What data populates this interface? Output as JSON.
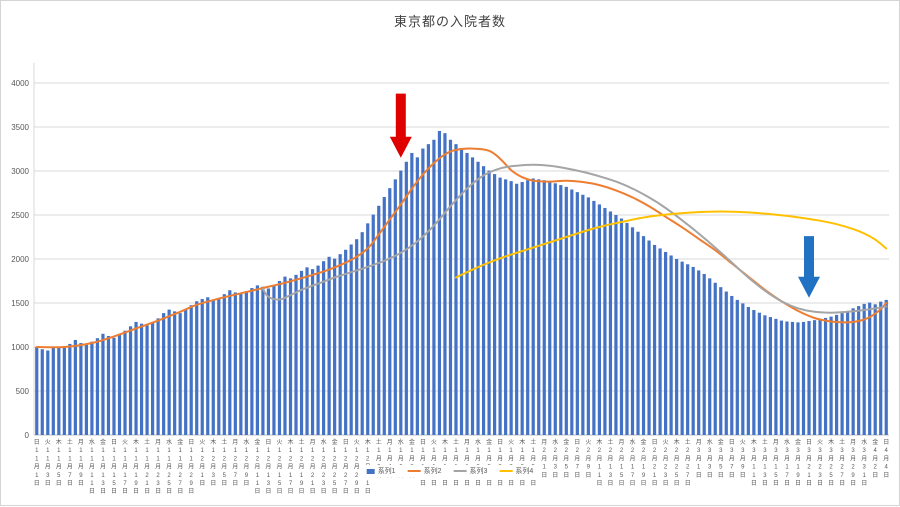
{
  "chart_data": {
    "type": "bar",
    "title": "東京都の入院者数",
    "xlabel": "",
    "ylabel": "",
    "ylim": [
      0,
      4000
    ],
    "y_ticks": [
      0,
      500,
      1000,
      1500,
      2000,
      2500,
      3000,
      3500,
      4000
    ],
    "grid": true,
    "legend_position": "bottom",
    "n_days": 155,
    "x_tick_every_days": 2,
    "x_tick_labels": [
      "日11月1日",
      "火11月3日",
      "木11月5日",
      "土11月7日",
      "月11月9日",
      "水11月11日",
      "金11月13日",
      "日11月15日",
      "火11月17日",
      "木11月19日",
      "土11月21日",
      "月11月23日",
      "水11月25日",
      "金11月27日",
      "日11月29日",
      "火12月1日",
      "木12月3日",
      "土12月5日",
      "月12月7日",
      "水12月9日",
      "金12月11日",
      "日12月13日",
      "火12月15日",
      "木12月17日",
      "土12月19日",
      "月12月21日",
      "水12月23日",
      "金12月25日",
      "日12月27日",
      "火12月29日",
      "木12月31日",
      "土1月2日",
      "月1月4日",
      "水1月6日",
      "金1月8日",
      "日1月10日",
      "火1月12日",
      "木1月14日",
      "土1月16日",
      "月1月18日",
      "水1月20日",
      "金1月22日",
      "日1月24日",
      "火1月26日",
      "木1月28日",
      "土1月30日",
      "月2月1日",
      "水2月3日",
      "金2月5日",
      "日2月7日",
      "火2月9日",
      "木2月11日",
      "土2月13日",
      "月2月15日",
      "水2月17日",
      "金2月19日",
      "日2月21日",
      "火2月23日",
      "木2月25日",
      "土2月27日",
      "月3月1日",
      "水3月3日",
      "金3月5日",
      "日3月7日",
      "火3月9日",
      "木3月11日",
      "土3月13日",
      "月3月15日",
      "水3月17日",
      "金3月19日",
      "日3月21日",
      "火3月23日",
      "木3月25日",
      "土3月27日",
      "月3月29日",
      "水3月31日",
      "金4月2日",
      "日4月4日"
    ],
    "series": [
      {
        "name": "系列1",
        "type": "bar",
        "color": "#4472C4",
        "values": [
          1000,
          975,
          960,
          1005,
          990,
          1010,
          1035,
          1080,
          1045,
          1025,
          1060,
          1100,
          1150,
          1125,
          1105,
          1145,
          1185,
          1235,
          1285,
          1265,
          1245,
          1275,
          1325,
          1385,
          1425,
          1405,
          1385,
          1425,
          1475,
          1520,
          1545,
          1565,
          1535,
          1555,
          1600,
          1645,
          1620,
          1605,
          1635,
          1670,
          1700,
          1685,
          1665,
          1705,
          1750,
          1800,
          1780,
          1820,
          1865,
          1905,
          1885,
          1925,
          1975,
          2025,
          2005,
          2055,
          2105,
          2165,
          2225,
          2305,
          2405,
          2505,
          2605,
          2705,
          2805,
          2905,
          3005,
          3105,
          3205,
          3155,
          3255,
          3305,
          3355,
          3455,
          3430,
          3355,
          3305,
          3255,
          3205,
          3155,
          3105,
          3055,
          3005,
          2965,
          2925,
          2905,
          2885,
          2855,
          2875,
          2895,
          2915,
          2905,
          2895,
          2880,
          2860,
          2840,
          2820,
          2790,
          2760,
          2730,
          2700,
          2660,
          2620,
          2580,
          2540,
          2500,
          2460,
          2410,
          2360,
          2310,
          2260,
          2210,
          2160,
          2120,
          2080,
          2040,
          2000,
          1970,
          1940,
          1910,
          1870,
          1830,
          1780,
          1730,
          1680,
          1630,
          1580,
          1535,
          1495,
          1455,
          1420,
          1390,
          1360,
          1340,
          1320,
          1300,
          1290,
          1285,
          1280,
          1285,
          1295,
          1305,
          1315,
          1330,
          1345,
          1365,
          1385,
          1410,
          1440,
          1465,
          1490,
          1505,
          1485,
          1515,
          1535
        ]
      },
      {
        "name": "系列2",
        "type": "line",
        "color": "#ED7D31",
        "points": [
          [
            0,
            1000
          ],
          [
            5,
            1000
          ],
          [
            10,
            1045
          ],
          [
            14,
            1120
          ],
          [
            18,
            1210
          ],
          [
            22,
            1300
          ],
          [
            26,
            1400
          ],
          [
            29,
            1480
          ],
          [
            33,
            1550
          ],
          [
            37,
            1610
          ],
          [
            41,
            1670
          ],
          [
            45,
            1730
          ],
          [
            49,
            1800
          ],
          [
            53,
            1880
          ],
          [
            57,
            1990
          ],
          [
            60,
            2120
          ],
          [
            62,
            2280
          ],
          [
            64,
            2450
          ],
          [
            66,
            2620
          ],
          [
            68,
            2800
          ],
          [
            70,
            2960
          ],
          [
            72,
            3090
          ],
          [
            74,
            3190
          ],
          [
            76,
            3240
          ],
          [
            79,
            3255
          ],
          [
            82,
            3230
          ],
          [
            84,
            3140
          ],
          [
            86,
            3010
          ],
          [
            88,
            2930
          ],
          [
            90,
            2890
          ],
          [
            93,
            2880
          ],
          [
            96,
            2890
          ],
          [
            99,
            2875
          ],
          [
            102,
            2840
          ],
          [
            105,
            2780
          ],
          [
            108,
            2700
          ],
          [
            111,
            2600
          ],
          [
            114,
            2480
          ],
          [
            117,
            2360
          ],
          [
            120,
            2230
          ],
          [
            123,
            2100
          ],
          [
            126,
            1950
          ],
          [
            129,
            1800
          ],
          [
            132,
            1650
          ],
          [
            135,
            1520
          ],
          [
            138,
            1410
          ],
          [
            141,
            1330
          ],
          [
            144,
            1290
          ],
          [
            147,
            1280
          ],
          [
            149,
            1295
          ],
          [
            151,
            1340
          ],
          [
            153,
            1430
          ],
          [
            154,
            1500
          ]
        ]
      },
      {
        "name": "系列3",
        "type": "line",
        "color": "#A5A5A5",
        "points": [
          [
            41,
            1660
          ],
          [
            42,
            1570
          ],
          [
            44,
            1540
          ],
          [
            46,
            1590
          ],
          [
            48,
            1650
          ],
          [
            51,
            1720
          ],
          [
            54,
            1790
          ],
          [
            57,
            1850
          ],
          [
            60,
            1910
          ],
          [
            63,
            1980
          ],
          [
            66,
            2070
          ],
          [
            69,
            2200
          ],
          [
            72,
            2380
          ],
          [
            75,
            2600
          ],
          [
            78,
            2800
          ],
          [
            81,
            2950
          ],
          [
            84,
            3030
          ],
          [
            87,
            3060
          ],
          [
            90,
            3070
          ],
          [
            93,
            3060
          ],
          [
            96,
            3030
          ],
          [
            99,
            2990
          ],
          [
            102,
            2940
          ],
          [
            105,
            2880
          ],
          [
            108,
            2800
          ],
          [
            111,
            2700
          ],
          [
            114,
            2580
          ],
          [
            117,
            2440
          ],
          [
            120,
            2290
          ],
          [
            123,
            2130
          ],
          [
            126,
            1960
          ],
          [
            129,
            1790
          ],
          [
            132,
            1640
          ],
          [
            135,
            1520
          ],
          [
            138,
            1440
          ],
          [
            141,
            1400
          ],
          [
            144,
            1390
          ],
          [
            147,
            1400
          ],
          [
            150,
            1420
          ],
          [
            154,
            1460
          ]
        ]
      },
      {
        "name": "系列4",
        "type": "line",
        "color": "#FFC000",
        "points": [
          [
            76,
            1790
          ],
          [
            79,
            1880
          ],
          [
            82,
            1960
          ],
          [
            85,
            2030
          ],
          [
            88,
            2090
          ],
          [
            91,
            2150
          ],
          [
            94,
            2210
          ],
          [
            97,
            2270
          ],
          [
            100,
            2330
          ],
          [
            103,
            2380
          ],
          [
            106,
            2420
          ],
          [
            109,
            2460
          ],
          [
            112,
            2490
          ],
          [
            115,
            2510
          ],
          [
            118,
            2525
          ],
          [
            121,
            2535
          ],
          [
            124,
            2540
          ],
          [
            127,
            2535
          ],
          [
            130,
            2525
          ],
          [
            133,
            2510
          ],
          [
            136,
            2490
          ],
          [
            139,
            2465
          ],
          [
            142,
            2435
          ],
          [
            145,
            2395
          ],
          [
            148,
            2340
          ],
          [
            150,
            2290
          ],
          [
            152,
            2220
          ],
          [
            154,
            2120
          ]
        ]
      }
    ],
    "annotations": [
      {
        "name": "red-down-arrow",
        "type": "down-arrow",
        "color": "#DF0000",
        "day_index": 66,
        "from_value": 3880,
        "to_value": 3150
      },
      {
        "name": "blue-down-arrow",
        "type": "down-arrow",
        "color": "#2272C3",
        "day_index": 140,
        "from_value": 2260,
        "to_value": 1560
      }
    ]
  }
}
